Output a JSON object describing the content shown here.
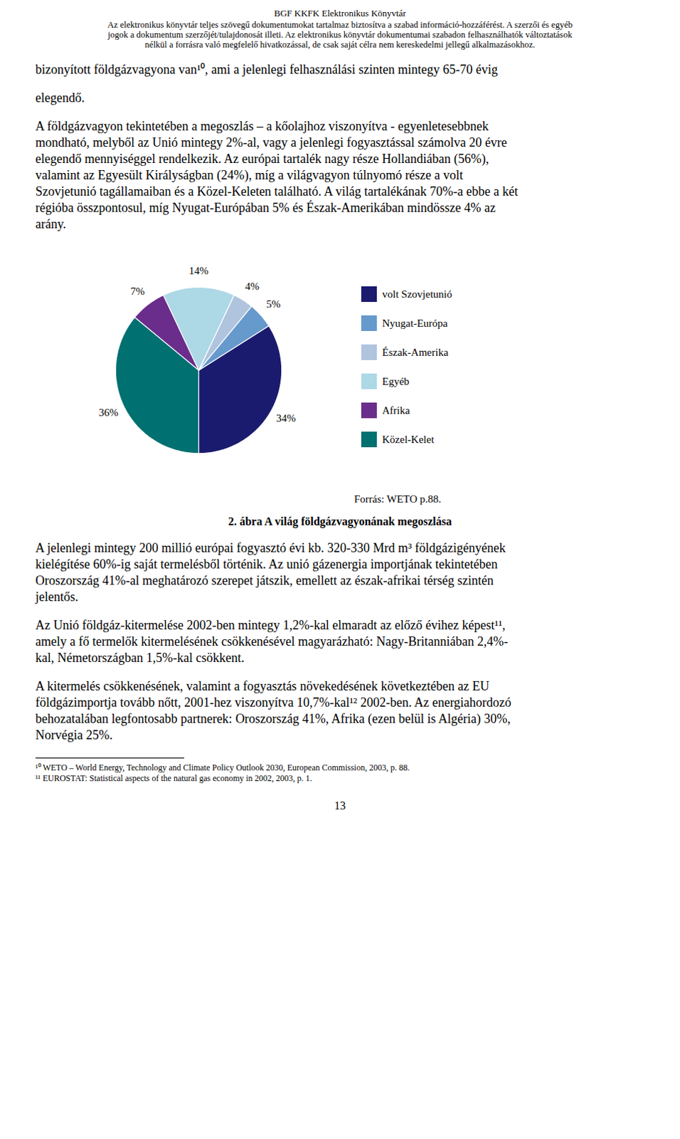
{
  "chart_data": {
    "type": "pie",
    "title": "2. ábra A világ földgázvagyonának megoszlása",
    "categories": [
      "volt Szovjetunió",
      "Nyugat-Európa",
      "Észak-Amerika",
      "Egyéb",
      "Afrika",
      "Közel-Kelet"
    ],
    "values": [
      34,
      5,
      4,
      14,
      7,
      36
    ],
    "value_labels": [
      "34%",
      "5%",
      "4%",
      "14%",
      "7%",
      "36%"
    ],
    "colors": [
      "#1a1a6e",
      "#6699cc",
      "#b0c4de",
      "#add8e6",
      "#6b2d8b",
      "#007070"
    ],
    "data_labels": true,
    "legend": "right",
    "annotations": [
      [
        "BGF KKFK Elektronikus Könyvtár",
        "Az elektronikus könyvtár teljes szövegű dokumentumokat tartalmaz biztosítva a szabad információ-hozzáférést. A szerzői és egyéb",
        "jogok a dokumentum szerzőjét/tulajdonosát illeti. Az elektronikus könyvtár dokumentumai szabadon felhasználhatók változtatások",
        "nélkül a forrásra való megfelelő hivatkozással, de csak saját célra nem kereskedelmi jellegű alkalmazásokhoz."
      ],
      [
        "bizonyított földgázvagyona van¹⁰, ami a jelenlegi felhasználási szinten  mintegy 65-70 évig"
      ],
      [
        "elegendő."
      ],
      [
        "A földgázvagyon tekintetében a megoszlás – a kőolajhoz viszonyítva - egyenletesebbnek",
        "mondható, melyből az Unió mintegy 2%-al, vagy a jelenlegi fogyasztással számolva 20 évre",
        "elegendő mennyiséggel rendelkezik. Az európai tartalék nagy része Hollandiában (56%),",
        "valamint az Egyesült Királyságban (24%), míg a világvagyon túlnyomó része a volt",
        "Szovjetunió tagállamaiban és a Közel-Keleten található. A világ tartalékának 70%-a ebbe a két",
        "régióba összpontosul, míg Nyugat-Európában 5% és Észak-Amerikában mindössze 4% az",
        "arány."
      ],
      [
        "Forrás: WETO p.88."
      ],
      [
        "A jelenlegi mintegy 200 millió európai fogyasztó évi kb. 320-330 Mrd m³ földgázigényének",
        "kielégítése 60%-ig saját termelésből történik. Az unió gázenergia importjának tekintetében",
        "Oroszország 41%-al meghatározó szerepet játszik, emellett az észak-afrikai térség szintén",
        "jelentős."
      ],
      [
        "Az Unió földgáz-kitermelése 2002-ben mintegy 1,2%-kal elmaradt az előző évihez képest¹¹,",
        "amely a fő termelők kitermelésének csökkenésével magyarázható: Nagy-Britanniában 2,4%-",
        "kal, Németországban 1,5%-kal csökkent."
      ],
      [
        "A kitermelés csökkenésének, valamint a fogyasztás növekedésének következtében az EU",
        "földgázimportja tovább nőtt, 2001-hez viszonyítva 10,7%-kal¹² 2002-ben. Az energiahordozó",
        "behozatalában legfontosabb partnerek: Oroszország 41%, Afrika (ezen belül is Algéria) 30%,",
        "Norvégia 25%."
      ],
      [
        "¹⁰ WETO – World Energy, Technology and Climate Policy Outlook 2030, European Commission, 2003, p. 88.",
        "¹¹ EUROSTAT: Statistical aspects of the natural gas economy in 2002, 2003, p. 1."
      ],
      [
        "13"
      ]
    ]
  }
}
